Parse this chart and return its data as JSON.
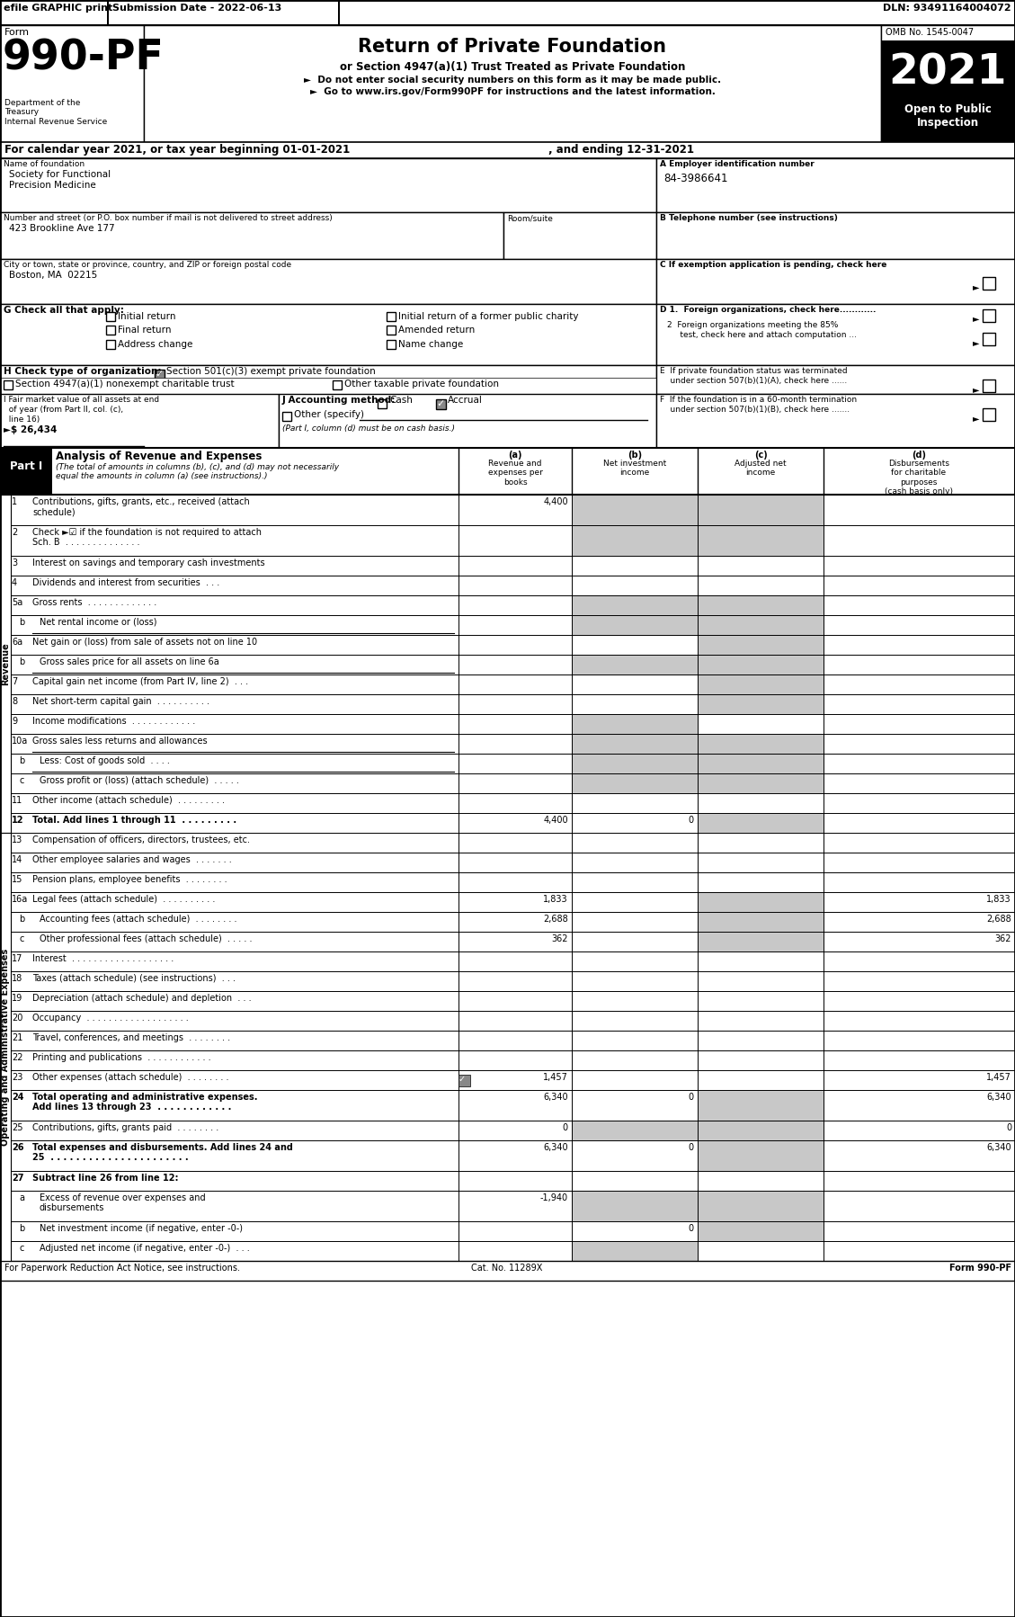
{
  "rows": [
    {
      "num": "1",
      "label": "Contributions, gifts, grants, etc., received (attach\nschedule)",
      "a": "4,400",
      "b": "",
      "c": "",
      "d": "",
      "shade_b": true,
      "shade_c": true,
      "bold": false
    },
    {
      "num": "2",
      "label": "Check ►☑ if the foundation is not required to attach\nSch. B  . . . . . . . . . . . . . .",
      "a": "",
      "b": "",
      "c": "",
      "d": "",
      "shade_b": true,
      "shade_c": true,
      "bold": false
    },
    {
      "num": "3",
      "label": "Interest on savings and temporary cash investments",
      "a": "",
      "b": "",
      "c": "",
      "d": "",
      "shade_b": false,
      "shade_c": false,
      "bold": false
    },
    {
      "num": "4",
      "label": "Dividends and interest from securities  . . .",
      "a": "",
      "b": "",
      "c": "",
      "d": "",
      "shade_b": false,
      "shade_c": false,
      "bold": false
    },
    {
      "num": "5a",
      "label": "Gross rents  . . . . . . . . . . . . .",
      "a": "",
      "b": "",
      "c": "",
      "d": "",
      "shade_b": true,
      "shade_c": true,
      "bold": false
    },
    {
      "num": "b",
      "label": "Net rental income or (loss)",
      "a": "",
      "b": "",
      "c": "",
      "d": "",
      "shade_b": true,
      "shade_c": true,
      "bold": false,
      "underline": true
    },
    {
      "num": "6a",
      "label": "Net gain or (loss) from sale of assets not on line 10",
      "a": "",
      "b": "",
      "c": "",
      "d": "",
      "shade_b": false,
      "shade_c": true,
      "bold": false
    },
    {
      "num": "b",
      "label": "Gross sales price for all assets on line 6a",
      "a": "",
      "b": "",
      "c": "",
      "d": "",
      "shade_b": true,
      "shade_c": true,
      "bold": false,
      "underline": true
    },
    {
      "num": "7",
      "label": "Capital gain net income (from Part IV, line 2)  . . .",
      "a": "",
      "b": "",
      "c": "",
      "d": "",
      "shade_b": false,
      "shade_c": true,
      "bold": false
    },
    {
      "num": "8",
      "label": "Net short-term capital gain  . . . . . . . . . .",
      "a": "",
      "b": "",
      "c": "",
      "d": "",
      "shade_b": false,
      "shade_c": true,
      "bold": false
    },
    {
      "num": "9",
      "label": "Income modifications  . . . . . . . . . . . .",
      "a": "",
      "b": "",
      "c": "",
      "d": "",
      "shade_b": true,
      "shade_c": false,
      "bold": false
    },
    {
      "num": "10a",
      "label": "Gross sales less returns and allowances",
      "a": "",
      "b": "",
      "c": "",
      "d": "",
      "shade_b": true,
      "shade_c": true,
      "bold": false,
      "underline": true
    },
    {
      "num": "b",
      "label": "Less: Cost of goods sold  . . . .",
      "a": "",
      "b": "",
      "c": "",
      "d": "",
      "shade_b": true,
      "shade_c": true,
      "bold": false,
      "underline": true
    },
    {
      "num": "c",
      "label": "Gross profit or (loss) (attach schedule)  . . . . .",
      "a": "",
      "b": "",
      "c": "",
      "d": "",
      "shade_b": true,
      "shade_c": true,
      "bold": false
    },
    {
      "num": "11",
      "label": "Other income (attach schedule)  . . . . . . . . .",
      "a": "",
      "b": "",
      "c": "",
      "d": "",
      "shade_b": false,
      "shade_c": false,
      "bold": false
    },
    {
      "num": "12",
      "label": "Total. Add lines 1 through 11  . . . . . . . . .",
      "a": "4,400",
      "b": "0",
      "c": "",
      "d": "",
      "shade_b": false,
      "shade_c": true,
      "bold": true
    },
    {
      "num": "13",
      "label": "Compensation of officers, directors, trustees, etc.",
      "a": "",
      "b": "",
      "c": "",
      "d": "",
      "shade_b": false,
      "shade_c": false,
      "bold": false
    },
    {
      "num": "14",
      "label": "Other employee salaries and wages  . . . . . . .",
      "a": "",
      "b": "",
      "c": "",
      "d": "",
      "shade_b": false,
      "shade_c": false,
      "bold": false
    },
    {
      "num": "15",
      "label": "Pension plans, employee benefits  . . . . . . . .",
      "a": "",
      "b": "",
      "c": "",
      "d": "",
      "shade_b": false,
      "shade_c": false,
      "bold": false
    },
    {
      "num": "16a",
      "label": "Legal fees (attach schedule)  . . . . . . . . . .",
      "a": "1,833",
      "b": "",
      "c": "",
      "d": "1,833",
      "shade_b": false,
      "shade_c": true,
      "bold": false
    },
    {
      "num": "b",
      "label": "Accounting fees (attach schedule)  . . . . . . . .",
      "a": "2,688",
      "b": "",
      "c": "",
      "d": "2,688",
      "shade_b": false,
      "shade_c": true,
      "bold": false
    },
    {
      "num": "c",
      "label": "Other professional fees (attach schedule)  . . . . .",
      "a": "362",
      "b": "",
      "c": "",
      "d": "362",
      "shade_b": false,
      "shade_c": true,
      "bold": false
    },
    {
      "num": "17",
      "label": "Interest  . . . . . . . . . . . . . . . . . . .",
      "a": "",
      "b": "",
      "c": "",
      "d": "",
      "shade_b": false,
      "shade_c": false,
      "bold": false
    },
    {
      "num": "18",
      "label": "Taxes (attach schedule) (see instructions)  . . .",
      "a": "",
      "b": "",
      "c": "",
      "d": "",
      "shade_b": false,
      "shade_c": false,
      "bold": false
    },
    {
      "num": "19",
      "label": "Depreciation (attach schedule) and depletion  . . .",
      "a": "",
      "b": "",
      "c": "",
      "d": "",
      "shade_b": false,
      "shade_c": false,
      "bold": false
    },
    {
      "num": "20",
      "label": "Occupancy  . . . . . . . . . . . . . . . . . . .",
      "a": "",
      "b": "",
      "c": "",
      "d": "",
      "shade_b": false,
      "shade_c": false,
      "bold": false
    },
    {
      "num": "21",
      "label": "Travel, conferences, and meetings  . . . . . . . .",
      "a": "",
      "b": "",
      "c": "",
      "d": "",
      "shade_b": false,
      "shade_c": false,
      "bold": false
    },
    {
      "num": "22",
      "label": "Printing and publications  . . . . . . . . . . . .",
      "a": "",
      "b": "",
      "c": "",
      "d": "",
      "shade_b": false,
      "shade_c": false,
      "bold": false
    },
    {
      "num": "23",
      "label": "Other expenses (attach schedule)  . . . . . . . .",
      "a": "1,457",
      "b": "",
      "c": "",
      "d": "1,457",
      "shade_b": false,
      "shade_c": false,
      "bold": false,
      "has_icon": true
    },
    {
      "num": "24",
      "label": "Total operating and administrative expenses.\nAdd lines 13 through 23  . . . . . . . . . . . .",
      "a": "6,340",
      "b": "0",
      "c": "",
      "d": "6,340",
      "shade_b": false,
      "shade_c": true,
      "bold": true
    },
    {
      "num": "25",
      "label": "Contributions, gifts, grants paid  . . . . . . . .",
      "a": "0",
      "b": "",
      "c": "",
      "d": "0",
      "shade_b": true,
      "shade_c": true,
      "bold": false
    },
    {
      "num": "26",
      "label": "Total expenses and disbursements. Add lines 24 and\n25  . . . . . . . . . . . . . . . . . . . . . .",
      "a": "6,340",
      "b": "0",
      "c": "",
      "d": "6,340",
      "shade_b": false,
      "shade_c": true,
      "bold": true
    },
    {
      "num": "27",
      "label": "Subtract line 26 from line 12:",
      "a": "",
      "b": "",
      "c": "",
      "d": "",
      "shade_b": false,
      "shade_c": false,
      "bold": true,
      "no_data": true
    },
    {
      "num": "a",
      "label": "Excess of revenue over expenses and\ndisbursements",
      "a": "-1,940",
      "b": "",
      "c": "",
      "d": "",
      "shade_b": true,
      "shade_c": true,
      "bold": false
    },
    {
      "num": "b",
      "label": "Net investment income (if negative, enter -0-)",
      "a": "",
      "b": "0",
      "c": "",
      "d": "",
      "shade_b": false,
      "shade_c": true,
      "bold": false
    },
    {
      "num": "c",
      "label": "Adjusted net income (if negative, enter -0-)  . . .",
      "a": "",
      "b": "",
      "c": "",
      "d": "",
      "shade_b": true,
      "shade_c": false,
      "bold": false
    }
  ],
  "shade_color": "#c8c8c8",
  "bg_color": "#ffffff"
}
